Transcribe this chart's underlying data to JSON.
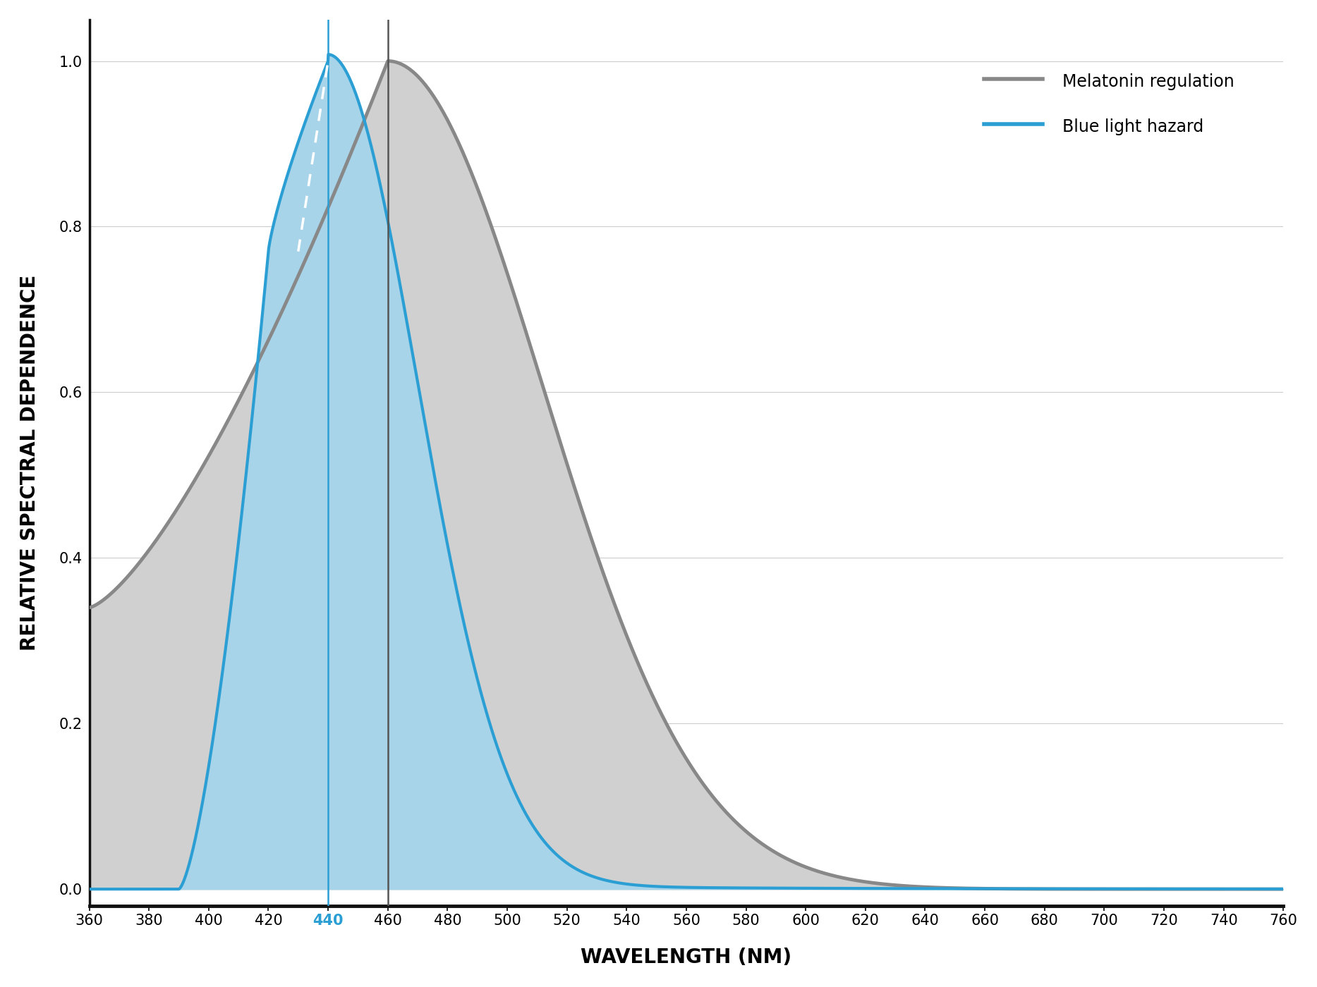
{
  "title": "",
  "xlabel": "WAVELENGTH (NM)",
  "ylabel": "RELATIVE SPECTRAL DEPENDENCE",
  "xlim": [
    360,
    760
  ],
  "ylim": [
    -0.02,
    1.05
  ],
  "xticks": [
    360,
    380,
    400,
    420,
    440,
    460,
    480,
    500,
    520,
    540,
    560,
    580,
    600,
    620,
    640,
    660,
    680,
    700,
    720,
    740,
    760
  ],
  "yticks": [
    0.0,
    0.2,
    0.4,
    0.6,
    0.8,
    1.0
  ],
  "blue_color": "#2b9fd4",
  "blue_fill_color": "#a8d4ea",
  "gray_color": "#888888",
  "gray_fill_color": "#d0d0d0",
  "vline_blue_color": "#2b9fd4",
  "vline_gray_color": "#555555",
  "background_color": "#ffffff",
  "legend_melatonin": "Melatonin regulation",
  "legend_blue_hazard": "Blue light hazard",
  "xlabel_fontsize": 20,
  "ylabel_fontsize": 20,
  "tick_fontsize": 15,
  "legend_fontsize": 17,
  "tick_color_440": "#2b9fd4",
  "grid_color": "#cccccc",
  "bottom_spine_color": "#111111",
  "left_spine_color": "#cccccc"
}
